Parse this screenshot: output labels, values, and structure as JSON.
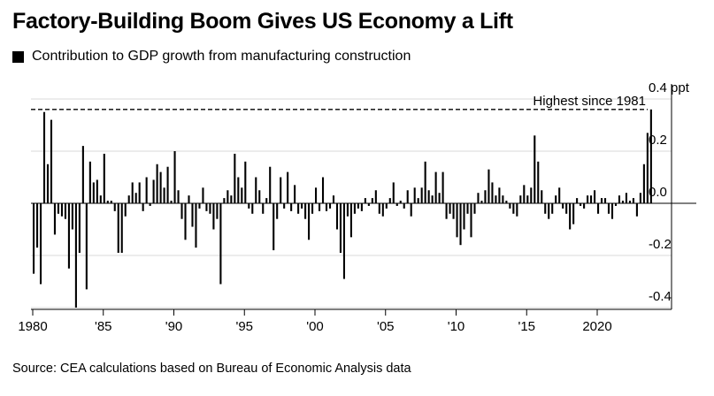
{
  "title": "Factory-Building Boom Gives US Economy a Lift",
  "legend": "Contribution to GDP growth from manufacturing construction",
  "source": "Source: CEA calculations based on Bureau of Economic Analysis data",
  "colors": {
    "bar": "#000000",
    "grid": "#d9d9d9",
    "background": "#ffffff"
  },
  "chart_data": {
    "type": "bar",
    "title": "Factory-Building Boom Gives US Economy a Lift",
    "series": [
      {
        "name": "Contribution to GDP growth from manufacturing construction",
        "start": "1980-Q1",
        "frequency": "quarterly",
        "values": [
          -0.27,
          -0.17,
          -0.31,
          0.35,
          0.15,
          0.32,
          -0.12,
          -0.04,
          -0.05,
          -0.06,
          -0.25,
          -0.1,
          -0.4,
          -0.19,
          0.22,
          -0.33,
          0.16,
          0.08,
          0.09,
          0.03,
          0.19,
          0.01,
          0.01,
          -0.03,
          -0.19,
          -0.19,
          -0.05,
          0.03,
          0.08,
          0.04,
          0.08,
          -0.03,
          0.1,
          -0.01,
          0.09,
          0.15,
          0.12,
          0.06,
          0.14,
          0.01,
          0.2,
          0.05,
          -0.06,
          -0.14,
          0.03,
          -0.09,
          -0.17,
          -0.02,
          0.06,
          -0.03,
          -0.04,
          -0.1,
          -0.06,
          -0.31,
          0.02,
          0.05,
          0.03,
          0.19,
          0.1,
          0.06,
          0.16,
          -0.02,
          -0.04,
          0.1,
          0.05,
          -0.04,
          0.02,
          0.14,
          -0.18,
          -0.06,
          0.1,
          -0.02,
          0.12,
          -0.03,
          0.07,
          -0.04,
          -0.02,
          -0.06,
          -0.14,
          -0.04,
          0.06,
          -0.03,
          0.1,
          -0.03,
          -0.02,
          0.03,
          -0.1,
          -0.19,
          -0.29,
          -0.05,
          -0.13,
          -0.04,
          -0.02,
          -0.03,
          0.02,
          -0.01,
          0.02,
          0.05,
          -0.04,
          -0.05,
          -0.02,
          0.02,
          0.08,
          -0.01,
          0.01,
          -0.02,
          0.05,
          -0.05,
          0.06,
          0.02,
          0.06,
          0.16,
          0.05,
          0.03,
          0.12,
          0.04,
          0.12,
          -0.06,
          -0.04,
          -0.06,
          -0.13,
          -0.16,
          -0.1,
          -0.04,
          -0.13,
          -0.04,
          0.04,
          0.01,
          0.05,
          0.13,
          0.08,
          0.03,
          0.06,
          0.03,
          0.01,
          -0.02,
          -0.04,
          -0.05,
          0.03,
          0.07,
          0.03,
          0.06,
          0.26,
          0.16,
          0.05,
          -0.04,
          -0.06,
          -0.04,
          0.03,
          0.06,
          -0.02,
          -0.04,
          -0.1,
          -0.08,
          0.02,
          -0.01,
          -0.02,
          0.03,
          0.03,
          0.05,
          -0.04,
          0.02,
          0.02,
          -0.04,
          -0.06,
          -0.01,
          0.03,
          0.01,
          0.04,
          0.01,
          0.02,
          -0.05,
          0.04,
          0.15,
          0.27,
          0.36
        ]
      }
    ],
    "x_ticks": [
      "1980",
      "'85",
      "'90",
      "'95",
      "'00",
      "'05",
      "'10",
      "'15",
      "2020"
    ],
    "x_tick_years": [
      1980,
      1985,
      1990,
      1995,
      2000,
      2005,
      2010,
      2015,
      2020
    ],
    "y_ticks": [
      0.4,
      0.2,
      0.0,
      -0.2,
      -0.4
    ],
    "y_tick_labels": [
      "0.4 ppt",
      "0.2",
      "0.0",
      "-0.2",
      "-0.4"
    ],
    "ylim": [
      -0.4,
      0.4
    ],
    "xlabel": "",
    "ylabel": "ppt",
    "reference_line": {
      "value": 0.36,
      "label": "Highest since 1981"
    }
  }
}
